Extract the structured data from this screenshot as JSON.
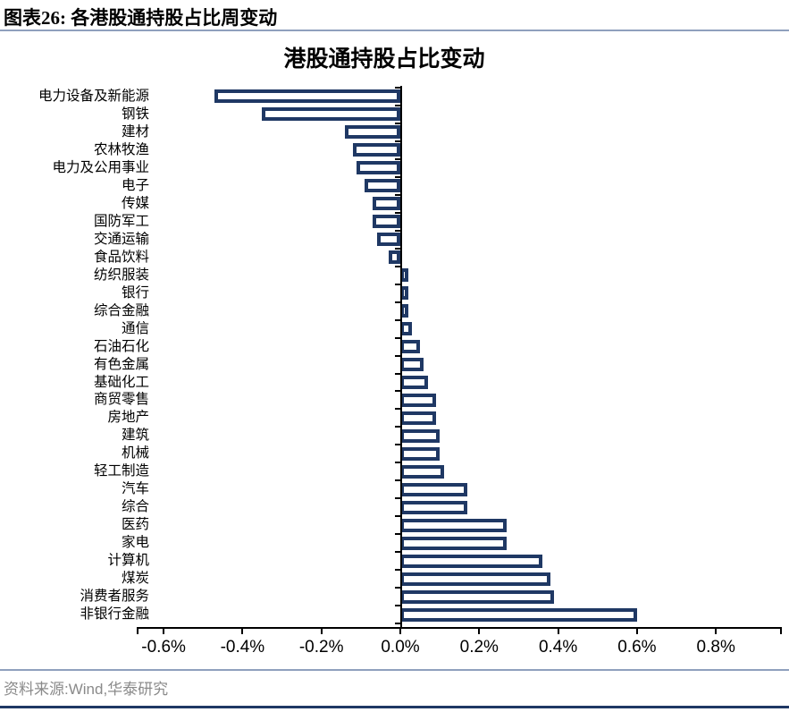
{
  "figure": {
    "header": "图表26:  各港股通持股占比周变动",
    "source": "资料来源:Wind,华泰研究"
  },
  "chart_data": {
    "type": "bar",
    "orientation": "horizontal",
    "title": "港股通持股占比变动",
    "unit": "%",
    "categories": [
      "电力设备及新能源",
      "钢铁",
      "建材",
      "农林牧渔",
      "电力及公用事业",
      "电子",
      "传媒",
      "国防军工",
      "交通运输",
      "食品饮料",
      "纺织服装",
      "银行",
      "综合金融",
      "通信",
      "石油石化",
      "有色金属",
      "基础化工",
      "商贸零售",
      "房地产",
      "建筑",
      "机械",
      "轻工制造",
      "汽车",
      "综合",
      "医药",
      "家电",
      "计算机",
      "煤炭",
      "消费者服务",
      "非银行金融"
    ],
    "values": [
      -0.47,
      -0.35,
      -0.14,
      -0.12,
      -0.11,
      -0.09,
      -0.07,
      -0.07,
      -0.06,
      -0.03,
      0.02,
      0.02,
      0.02,
      0.03,
      0.05,
      0.06,
      0.07,
      0.09,
      0.09,
      0.1,
      0.1,
      0.11,
      0.17,
      0.17,
      0.27,
      0.27,
      0.36,
      0.38,
      0.39,
      0.6
    ],
    "xlim": [
      -0.6,
      0.8
    ],
    "x_tick_values": [
      -0.6,
      -0.4,
      -0.2,
      0,
      0.2,
      0.4,
      0.6,
      0.8
    ],
    "x_tick_labels": [
      "-0.6%",
      "-0.4%",
      "-0.2%",
      "0.0%",
      "0.2%",
      "0.4%",
      "0.6%",
      "0.8%"
    ],
    "grid": "off",
    "legend": "none",
    "bar_fill": "#ffffff",
    "bar_border": "#1f3864",
    "accent_navy": "#1f3864",
    "divider_color": "#8fa0bd",
    "source_text_color": "#8a8a8a"
  }
}
